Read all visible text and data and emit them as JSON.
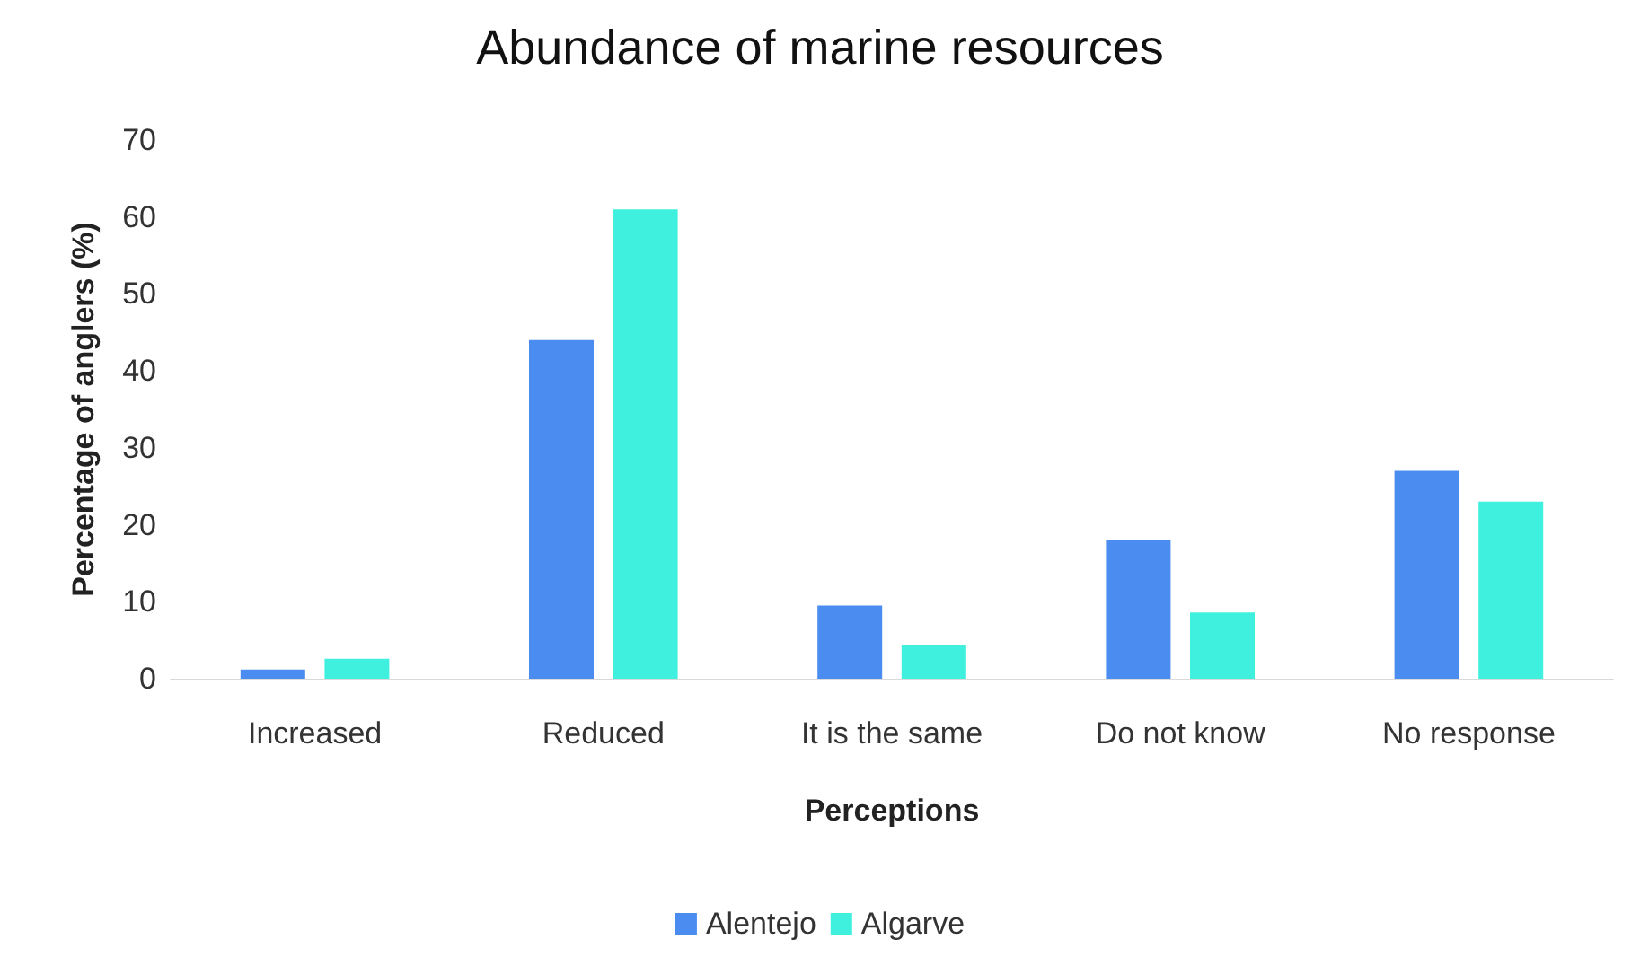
{
  "chart_data": {
    "type": "bar",
    "title": "Abundance of marine resources",
    "xlabel": "Perceptions",
    "ylabel": "Percentage of anglers (%)",
    "categories": [
      "Increased",
      "Reduced",
      "It is the same",
      "Do not know",
      "No response"
    ],
    "series": [
      {
        "name": "Alentejo",
        "color": "#4a8cf0",
        "values": [
          1.2,
          44,
          9.5,
          18,
          27
        ]
      },
      {
        "name": "Algarve",
        "color": "#3ff0de",
        "values": [
          2.6,
          61,
          4.4,
          8.6,
          23
        ]
      }
    ],
    "ylim": [
      0,
      70
    ],
    "yticks": [
      0,
      10,
      20,
      30,
      40,
      50,
      60,
      70
    ],
    "grid": false,
    "legend": "bottom"
  }
}
